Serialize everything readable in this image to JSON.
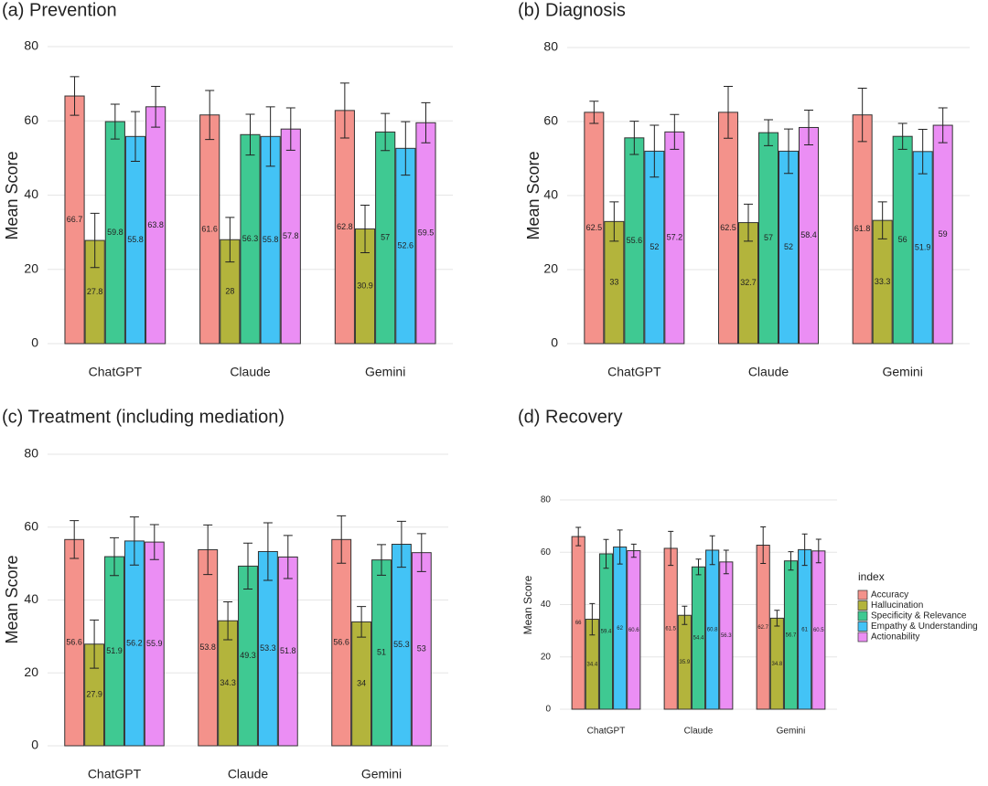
{
  "chart_data": [
    {
      "type": "bar",
      "title": "(a) Prevention",
      "y_label": "Mean Score",
      "categories": [
        "ChatGPT",
        "Claude",
        "Gemini"
      ],
      "ylim": [
        0,
        80
      ],
      "yticks": [
        0,
        20,
        40,
        60,
        80
      ],
      "grid": true,
      "series": [
        {
          "color": "#f4928b",
          "values": [
            66.7,
            61.6,
            62.8
          ],
          "errors": [
            5.2,
            6.6,
            7.4
          ]
        },
        {
          "color": "#b3b43c",
          "values": [
            27.8,
            28,
            30.9
          ],
          "errors": [
            7.3,
            6,
            6.4
          ]
        },
        {
          "color": "#3fc992",
          "values": [
            59.8,
            56.3,
            57
          ],
          "errors": [
            4.7,
            5.5,
            5
          ]
        },
        {
          "color": "#43c3f6",
          "values": [
            55.8,
            55.8,
            52.6
          ],
          "errors": [
            6.7,
            8,
            7.2
          ]
        },
        {
          "color": "#eb8ef4",
          "values": [
            63.8,
            57.8,
            59.5
          ],
          "errors": [
            5.5,
            5.7,
            5.4
          ]
        }
      ]
    },
    {
      "type": "bar",
      "title": "(b) Diagnosis",
      "y_label": "Mean Score",
      "categories": [
        "ChatGPT",
        "Claude",
        "Gemini"
      ],
      "ylim": [
        0,
        80
      ],
      "yticks": [
        0,
        20,
        40,
        60,
        80
      ],
      "grid": true,
      "series": [
        {
          "color": "#f4928b",
          "values": [
            62.5,
            62.5,
            61.8
          ],
          "errors": [
            3,
            7,
            7.2
          ]
        },
        {
          "color": "#b3b43c",
          "values": [
            33,
            32.7,
            33.3
          ],
          "errors": [
            5.3,
            5,
            5
          ]
        },
        {
          "color": "#3fc992",
          "values": [
            55.6,
            57,
            56
          ],
          "errors": [
            4.5,
            3.5,
            3.5
          ]
        },
        {
          "color": "#43c3f6",
          "values": [
            52,
            52,
            51.9
          ],
          "errors": [
            7,
            6,
            6
          ]
        },
        {
          "color": "#eb8ef4",
          "values": [
            57.2,
            58.4,
            59
          ],
          "errors": [
            4.7,
            4.7,
            4.7
          ]
        }
      ]
    },
    {
      "type": "bar",
      "title": "(c) Treatment (including mediation)",
      "y_label": "Mean Score",
      "categories": [
        "ChatGPT",
        "Claude",
        "Gemini"
      ],
      "ylim": [
        0,
        80
      ],
      "yticks": [
        0,
        20,
        40,
        60,
        80
      ],
      "grid": true,
      "series": [
        {
          "color": "#f4928b",
          "values": [
            56.6,
            53.8,
            56.6
          ],
          "errors": [
            5.2,
            6.8,
            6.5
          ]
        },
        {
          "color": "#b3b43c",
          "values": [
            27.9,
            34.3,
            34
          ],
          "errors": [
            6.6,
            5.2,
            4.2
          ]
        },
        {
          "color": "#3fc992",
          "values": [
            51.9,
            49.3,
            51
          ],
          "errors": [
            5.2,
            6.3,
            4.2
          ]
        },
        {
          "color": "#43c3f6",
          "values": [
            56.2,
            53.3,
            55.3
          ],
          "errors": [
            6.6,
            7.9,
            6.3
          ]
        },
        {
          "color": "#eb8ef4",
          "values": [
            55.9,
            51.8,
            53
          ],
          "errors": [
            4.8,
            5.9,
            5.2
          ]
        }
      ]
    },
    {
      "type": "bar",
      "title": "(d) Recovery",
      "y_label": "Mean Score",
      "categories": [
        "ChatGPT",
        "Claude",
        "Gemini"
      ],
      "ylim": [
        0,
        80
      ],
      "yticks": [
        0,
        20,
        40,
        60,
        80
      ],
      "grid": true,
      "legend": "right",
      "legend_title": "index",
      "series": [
        {
          "name": "Accuracy",
          "color": "#f4928b",
          "values": [
            66,
            61.5,
            62.7
          ],
          "errors": [
            3.5,
            6.5,
            7
          ]
        },
        {
          "name": "Hallucination",
          "color": "#b3b43c",
          "values": [
            34.4,
            35.9,
            34.8
          ],
          "errors": [
            6,
            3.5,
            3
          ]
        },
        {
          "name": "Specificity & Relevance",
          "color": "#3fc992",
          "values": [
            59.4,
            54.4,
            56.7
          ],
          "errors": [
            5.5,
            3,
            3.5
          ]
        },
        {
          "name": "Empathy & Understanding",
          "color": "#43c3f6",
          "values": [
            62,
            60.8,
            61
          ],
          "errors": [
            6.5,
            5.5,
            6
          ]
        },
        {
          "name": "Actionability",
          "color": "#eb8ef4",
          "values": [
            60.6,
            56.3,
            60.5
          ],
          "errors": [
            2.5,
            4.5,
            4.5
          ]
        }
      ]
    }
  ]
}
